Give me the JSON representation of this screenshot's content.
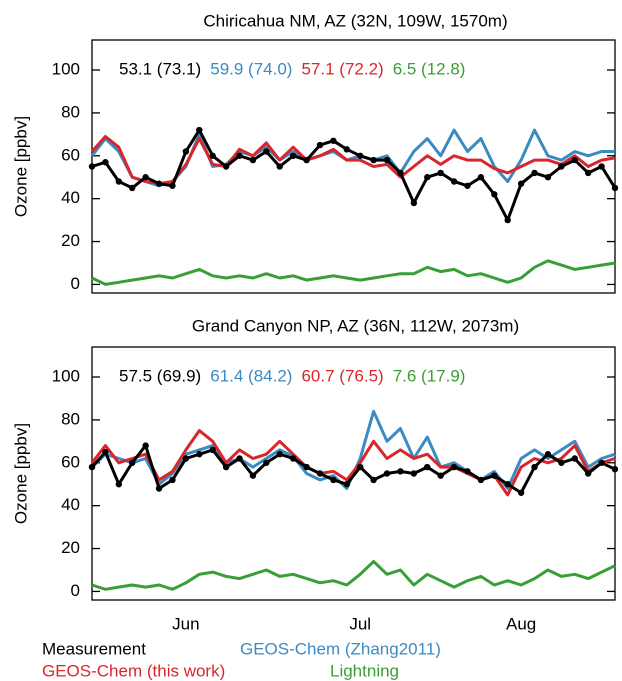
{
  "chart_data": [
    {
      "type": "line",
      "title": "Chiricahua NM, AZ (32N, 109W, 1570m)",
      "ylabel": "Ozone [ppbv]",
      "categories": [
        null,
        null,
        null,
        null,
        null,
        null,
        null,
        null,
        null,
        null,
        null,
        null,
        null,
        null,
        null,
        null,
        null,
        null,
        null,
        null,
        null,
        null,
        null,
        null,
        null,
        null,
        null,
        null,
        null,
        null,
        null,
        null,
        null,
        null,
        null,
        null,
        null,
        null,
        null,
        null
      ],
      "ylim": [
        -4,
        114
      ],
      "yticks": [
        0,
        20,
        40,
        60,
        80,
        100
      ],
      "stats": [
        "53.1 (73.1)",
        "59.9 (74.0)",
        "57.1 (72.2)",
        "6.5 (12.8)"
      ],
      "series": [
        {
          "name": "Measurement",
          "color": "#000000",
          "markers": true,
          "values": [
            55,
            57,
            48,
            45,
            50,
            47,
            46,
            62,
            72,
            60,
            55,
            60,
            58,
            62,
            55,
            60,
            58,
            65,
            67,
            63,
            60,
            58,
            58,
            52,
            38,
            50,
            52,
            48,
            46,
            50,
            42,
            30,
            47,
            52,
            50,
            55,
            58,
            52,
            55,
            45
          ]
        },
        {
          "name": "GEOS-Chem (Zhang2011)",
          "color": "#3b8bc2",
          "markers": false,
          "values": [
            60,
            68,
            62,
            50,
            48,
            46,
            48,
            55,
            70,
            55,
            56,
            62,
            60,
            64,
            58,
            62,
            58,
            60,
            62,
            58,
            60,
            58,
            60,
            52,
            62,
            68,
            60,
            72,
            62,
            68,
            55,
            48,
            58,
            72,
            60,
            58,
            62,
            60,
            62,
            62
          ]
        },
        {
          "name": "GEOS-Chem (this work)",
          "color": "#d9262c",
          "markers": false,
          "values": [
            62,
            69,
            64,
            50,
            48,
            47,
            48,
            56,
            68,
            56,
            55,
            63,
            60,
            66,
            58,
            64,
            58,
            60,
            63,
            58,
            58,
            55,
            56,
            50,
            55,
            60,
            56,
            60,
            58,
            58,
            54,
            52,
            55,
            58,
            58,
            56,
            60,
            55,
            58,
            59
          ]
        },
        {
          "name": "Lightning",
          "color": "#3a9e36",
          "markers": false,
          "values": [
            3,
            0,
            1,
            2,
            3,
            4,
            3,
            5,
            7,
            4,
            3,
            4,
            3,
            5,
            3,
            4,
            2,
            3,
            4,
            3,
            2,
            3,
            4,
            5,
            5,
            8,
            6,
            7,
            4,
            5,
            3,
            1,
            3,
            8,
            11,
            9,
            7,
            8,
            9,
            10
          ]
        }
      ]
    },
    {
      "type": "line",
      "title": "Grand Canyon NP, AZ (36N, 112W, 2073m)",
      "ylabel": "Ozone [ppbv]",
      "categories": [
        null,
        null,
        null,
        null,
        null,
        null,
        null,
        "Jun",
        null,
        null,
        null,
        null,
        null,
        null,
        null,
        null,
        null,
        null,
        null,
        null,
        "Jul",
        null,
        null,
        null,
        null,
        null,
        null,
        null,
        null,
        null,
        null,
        null,
        "Aug",
        null,
        null,
        null,
        null,
        null,
        null,
        null
      ],
      "ylim": [
        -4,
        114
      ],
      "yticks": [
        0,
        20,
        40,
        60,
        80,
        100
      ],
      "stats": [
        "57.5 (69.9)",
        "61.4 (84.2)",
        "60.7 (76.5)",
        "7.6 (17.9)"
      ],
      "series": [
        {
          "color": "#000000",
          "markers": true,
          "values": [
            58,
            65,
            50,
            60,
            68,
            48,
            52,
            62,
            64,
            66,
            58,
            62,
            54,
            60,
            64,
            62,
            58,
            55,
            52,
            50,
            58,
            52,
            55,
            56,
            55,
            58,
            54,
            58,
            56,
            52,
            54,
            50,
            46,
            58,
            64,
            60,
            62,
            55,
            60,
            57
          ]
        },
        {
          "color": "#3b8bc2",
          "markers": false,
          "values": [
            58,
            64,
            62,
            60,
            62,
            50,
            55,
            64,
            66,
            68,
            60,
            62,
            58,
            62,
            66,
            63,
            55,
            52,
            54,
            48,
            62,
            84,
            70,
            76,
            62,
            72,
            58,
            60,
            56,
            52,
            56,
            48,
            62,
            66,
            62,
            66,
            70,
            58,
            62,
            64
          ]
        },
        {
          "color": "#d9262c",
          "markers": false,
          "values": [
            60,
            68,
            60,
            62,
            64,
            52,
            56,
            66,
            75,
            70,
            60,
            66,
            62,
            64,
            70,
            64,
            58,
            55,
            56,
            52,
            60,
            70,
            62,
            66,
            62,
            64,
            58,
            58,
            55,
            52,
            54,
            45,
            58,
            62,
            60,
            62,
            68,
            56,
            60,
            62
          ]
        },
        {
          "color": "#3a9e36",
          "markers": false,
          "values": [
            3,
            1,
            2,
            3,
            2,
            3,
            1,
            4,
            8,
            9,
            7,
            6,
            8,
            10,
            7,
            8,
            6,
            4,
            5,
            3,
            8,
            14,
            8,
            10,
            3,
            8,
            5,
            2,
            5,
            7,
            3,
            5,
            3,
            6,
            10,
            7,
            8,
            6,
            9,
            12
          ]
        }
      ]
    }
  ]
}
